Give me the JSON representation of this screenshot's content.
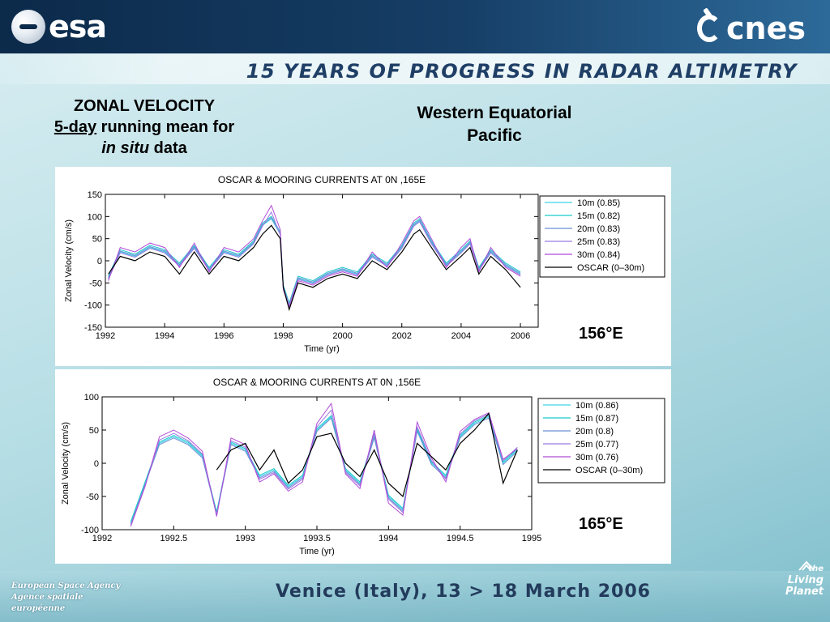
{
  "header": {
    "esa_logo_text": "esa",
    "cnes_logo_text": "cnes",
    "banner": "15 YEARS OF PROGRESS IN RADAR ALTIMETRY"
  },
  "left_title": {
    "line1": "ZONAL VELOCITY",
    "line2_underlined": "5-day",
    "line2_rest": " running mean for",
    "line3_italic": "in situ",
    "line3_rest": " data"
  },
  "right_title": {
    "line1": "Western Equatorial",
    "line2": "Pacific"
  },
  "location_labels": [
    "156°E",
    "165°E"
  ],
  "footer": {
    "agency_en": "European Space Agency",
    "agency_fr": "Agence spatiale européenne",
    "venue": "Venice (Italy), 13 > 18 March 2006",
    "living_the": "the",
    "living_planet": "Living Planet"
  },
  "colors": {
    "c10m": "#3fd3e6",
    "c15m": "#19c9c9",
    "c20m": "#6b8fd6",
    "c25m": "#9b7ae0",
    "c30m": "#b14ad8",
    "oscar": "#000000"
  },
  "chart_data": [
    {
      "type": "line",
      "title": "OSCAR & MOORING CURRENTS AT 0N ,165E",
      "xlabel": "Time (yr)",
      "ylabel": "Zonal Velocity (cm/s)",
      "xlim": [
        1992,
        2006.6
      ],
      "ylim": [
        -150,
        150
      ],
      "xticks": [
        1992,
        1994,
        1996,
        1998,
        2000,
        2002,
        2004,
        2006
      ],
      "yticks": [
        -150,
        -100,
        -50,
        0,
        50,
        100,
        150
      ],
      "legend_position": "right",
      "legend": [
        "10m (0.85)",
        "15m (0.82)",
        "20m (0.83)",
        "25m (0.83)",
        "30m (0.84)",
        "OSCAR (0–30m)"
      ],
      "x": [
        1992.1,
        1992.5,
        1993.0,
        1993.5,
        1994.0,
        1994.5,
        1995.0,
        1995.5,
        1996.0,
        1996.5,
        1997.0,
        1997.3,
        1997.6,
        1997.9,
        1998.0,
        1998.2,
        1998.5,
        1999.0,
        1999.5,
        2000.0,
        2000.5,
        2001.0,
        2001.5,
        2002.0,
        2002.4,
        2002.6,
        2003.0,
        2003.5,
        2004.0,
        2004.3,
        2004.6,
        2005.0,
        2005.5,
        2006.0
      ],
      "series": [
        {
          "name": "10m (0.85)",
          "values": [
            -40,
            20,
            10,
            30,
            20,
            -10,
            30,
            -20,
            20,
            10,
            40,
            80,
            95,
            60,
            -60,
            -100,
            -40,
            -50,
            -30,
            -20,
            -30,
            10,
            -10,
            30,
            80,
            90,
            40,
            -10,
            20,
            40,
            -20,
            20,
            -10,
            -30
          ]
        },
        {
          "name": "15m (0.82)",
          "values": [
            -35,
            25,
            15,
            35,
            25,
            -5,
            35,
            -15,
            25,
            15,
            45,
            85,
            100,
            65,
            -55,
            -95,
            -35,
            -45,
            -25,
            -15,
            -25,
            15,
            -5,
            35,
            85,
            95,
            45,
            -5,
            25,
            45,
            -15,
            25,
            -5,
            -25
          ]
        },
        {
          "name": "20m (0.83)",
          "values": [
            -38,
            22,
            12,
            32,
            22,
            -8,
            32,
            -18,
            22,
            12,
            42,
            82,
            97,
            62,
            -58,
            -98,
            -38,
            -48,
            -28,
            -18,
            -28,
            12,
            -8,
            32,
            82,
            92,
            42,
            -8,
            22,
            42,
            -18,
            22,
            -8,
            -28
          ]
        },
        {
          "name": "25m (0.83)",
          "values": [
            -42,
            18,
            8,
            28,
            18,
            -12,
            28,
            -22,
            18,
            8,
            38,
            78,
            110,
            58,
            -62,
            -102,
            -42,
            -52,
            -32,
            -22,
            -32,
            8,
            -12,
            28,
            78,
            88,
            38,
            -12,
            18,
            38,
            -22,
            18,
            -12,
            -32
          ]
        },
        {
          "name": "30m (0.84)",
          "values": [
            -45,
            30,
            20,
            40,
            30,
            -15,
            40,
            -25,
            30,
            20,
            50,
            90,
            125,
            70,
            -65,
            -105,
            -45,
            -55,
            -35,
            -25,
            -35,
            20,
            -15,
            40,
            90,
            100,
            50,
            -15,
            30,
            50,
            -25,
            30,
            -15,
            -35
          ]
        },
        {
          "name": "OSCAR (0–30m)",
          "values": [
            -30,
            10,
            0,
            20,
            10,
            -30,
            20,
            -30,
            10,
            0,
            30,
            60,
            80,
            50,
            -60,
            -110,
            -50,
            -60,
            -40,
            -30,
            -40,
            0,
            -20,
            20,
            60,
            70,
            30,
            -20,
            10,
            30,
            -30,
            10,
            -20,
            -60
          ]
        }
      ]
    },
    {
      "type": "line",
      "title": "OSCAR & MOORING CURRENTS AT 0N ,156E",
      "xlabel": "Time (yr)",
      "ylabel": "Zonal Velocity (cm/s)",
      "xlim": [
        1992,
        1995
      ],
      "ylim": [
        -100,
        100
      ],
      "xticks": [
        1992,
        1992.5,
        1993,
        1993.5,
        1994,
        1994.5,
        1995
      ],
      "yticks": [
        -100,
        -50,
        0,
        50,
        100
      ],
      "legend_position": "right",
      "legend": [
        "10m (0.86)",
        "15m (0.87)",
        "20m (0.8)",
        "25m (0.77)",
        "30m (0.76)",
        "OSCAR (0–30m)"
      ],
      "x": [
        1992.2,
        1992.3,
        1992.4,
        1992.5,
        1992.6,
        1992.7,
        1992.8,
        1992.9,
        1993.0,
        1993.1,
        1993.2,
        1993.3,
        1993.4,
        1993.5,
        1993.6,
        1993.7,
        1993.8,
        1993.9,
        1994.0,
        1994.1,
        1994.2,
        1994.3,
        1994.4,
        1994.5,
        1994.6,
        1994.7,
        1994.8,
        1994.9
      ],
      "series": [
        {
          "name": "10m (0.86)",
          "values": [
            -90,
            -30,
            30,
            40,
            30,
            10,
            -75,
            30,
            20,
            -20,
            -10,
            -35,
            -20,
            50,
            70,
            -10,
            -30,
            40,
            -50,
            -70,
            50,
            0,
            -20,
            40,
            60,
            70,
            0,
            20
          ]
        },
        {
          "name": "15m (0.87)",
          "values": [
            -88,
            -28,
            32,
            42,
            32,
            12,
            -73,
            32,
            22,
            -18,
            -8,
            -33,
            -18,
            52,
            72,
            -8,
            -28,
            42,
            -48,
            -68,
            52,
            2,
            -18,
            42,
            62,
            72,
            2,
            22
          ]
        },
        {
          "name": "20m (0.8)",
          "values": [
            -92,
            -32,
            28,
            38,
            28,
            8,
            -77,
            28,
            18,
            -22,
            -12,
            -37,
            -22,
            48,
            68,
            -12,
            -32,
            38,
            -52,
            -72,
            48,
            -2,
            -22,
            38,
            58,
            68,
            -2,
            18
          ]
        },
        {
          "name": "25m (0.77)",
          "values": [
            -94,
            -34,
            35,
            45,
            34,
            14,
            -78,
            34,
            24,
            -24,
            -14,
            -39,
            -24,
            55,
            80,
            -14,
            -34,
            45,
            -54,
            -74,
            55,
            4,
            -24,
            44,
            64,
            74,
            4,
            24
          ]
        },
        {
          "name": "30m (0.76)",
          "values": [
            -95,
            -35,
            40,
            50,
            38,
            18,
            -80,
            38,
            28,
            -28,
            -16,
            -42,
            -28,
            60,
            90,
            -16,
            -38,
            50,
            -60,
            -78,
            62,
            8,
            -28,
            48,
            66,
            76,
            6,
            22
          ]
        },
        {
          "name": "OSCAR (0–30m)",
          "values": [
            null,
            null,
            null,
            null,
            null,
            null,
            -10,
            20,
            30,
            -10,
            20,
            -30,
            -10,
            40,
            45,
            0,
            -20,
            20,
            -30,
            -50,
            30,
            10,
            -10,
            30,
            50,
            75,
            -30,
            20
          ]
        }
      ]
    }
  ]
}
